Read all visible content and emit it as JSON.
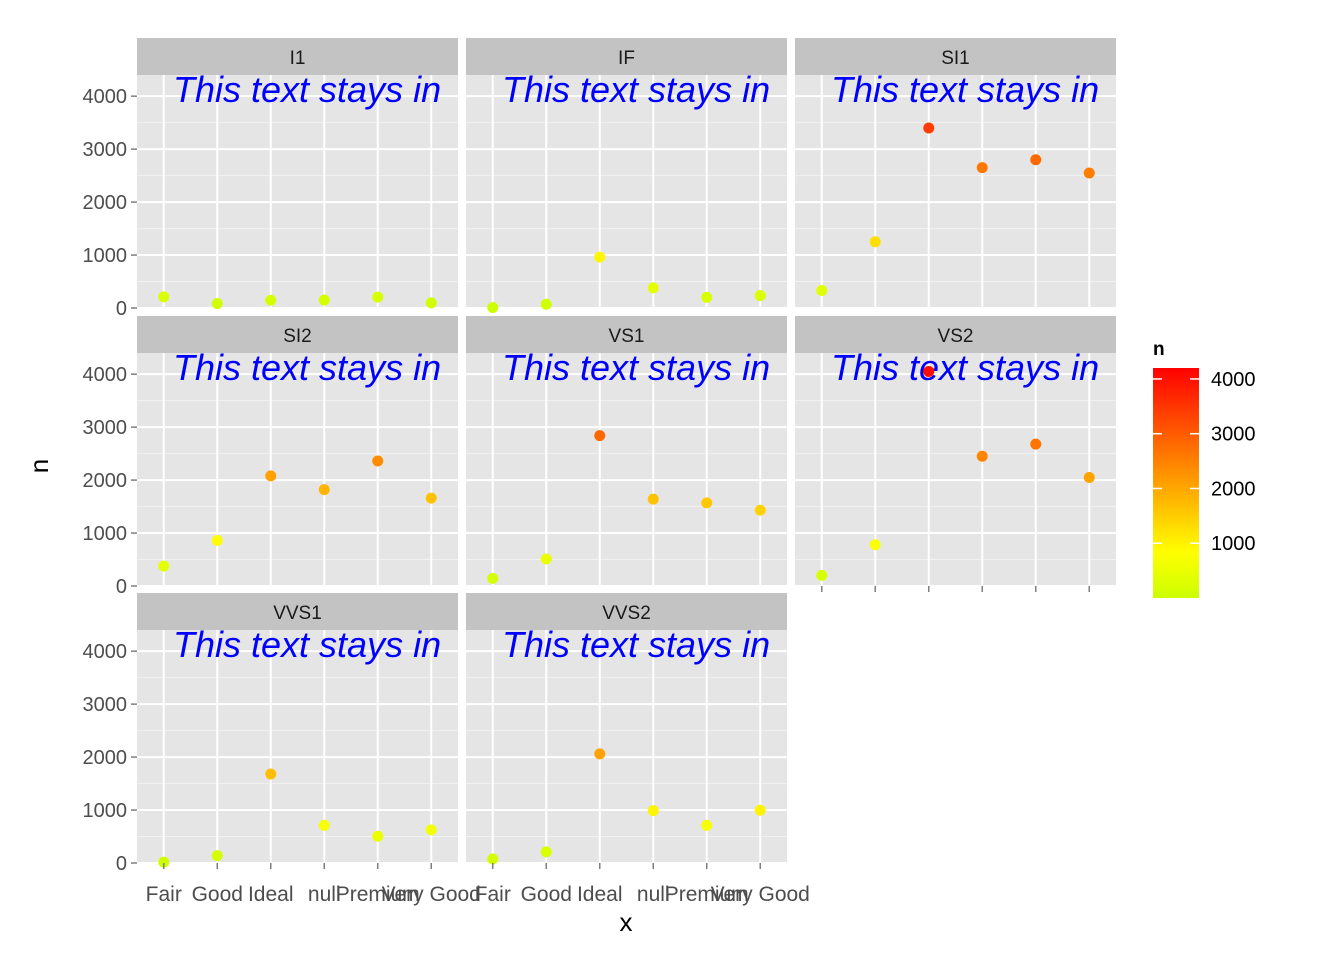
{
  "chart_data": {
    "type": "scatter",
    "facet_layout": "wrap",
    "x_categories": [
      "Fair",
      "Good",
      "Ideal",
      "null",
      "Premium",
      "Very Good"
    ],
    "x_tick_labels": [
      "Fair",
      "Good",
      "Ideal",
      "null",
      "Premium",
      "Very Good"
    ],
    "xlabel": "x",
    "ylabel": "n",
    "ylim": [
      0,
      4400
    ],
    "y_ticks": [
      0,
      1000,
      2000,
      3000,
      4000
    ],
    "y_tick_labels": [
      "0",
      "1000",
      "2000",
      "3000",
      "4000"
    ],
    "grid": true,
    "annotation": "This text stays in",
    "annotation_color": "#0000ff",
    "panel_background": "#e5e5e5",
    "strip_background": "#c3c3c3",
    "legend": {
      "title": "n",
      "placement": "right",
      "range": [
        0,
        4200
      ],
      "ticks": [
        1000,
        2000,
        3000,
        4000
      ],
      "tick_labels": [
        "1000",
        "2000",
        "3000",
        "4000"
      ],
      "low_color": "#ccff00",
      "mid_color": "#ffff00",
      "high_color": "#ff0000"
    },
    "panels": [
      {
        "label": "I1",
        "values": [
          210,
          84,
          146,
          150,
          205,
          96
        ]
      },
      {
        "label": "IF",
        "values": [
          9,
          71,
          960,
          380,
          200,
          235
        ]
      },
      {
        "label": "SI1",
        "values": [
          330,
          1250,
          3400,
          2650,
          2800,
          2550
        ]
      },
      {
        "label": "SI2",
        "values": [
          375,
          860,
          2080,
          1820,
          2360,
          1660
        ]
      },
      {
        "label": "VS1",
        "values": [
          145,
          510,
          2840,
          1640,
          1570,
          1430
        ]
      },
      {
        "label": "VS2",
        "values": [
          200,
          780,
          4050,
          2450,
          2680,
          2050
        ]
      },
      {
        "label": "VVS1",
        "values": [
          17,
          140,
          1680,
          710,
          505,
          625
        ]
      },
      {
        "label": "VVS2",
        "values": [
          75,
          210,
          2060,
          990,
          710,
          995
        ]
      }
    ]
  }
}
